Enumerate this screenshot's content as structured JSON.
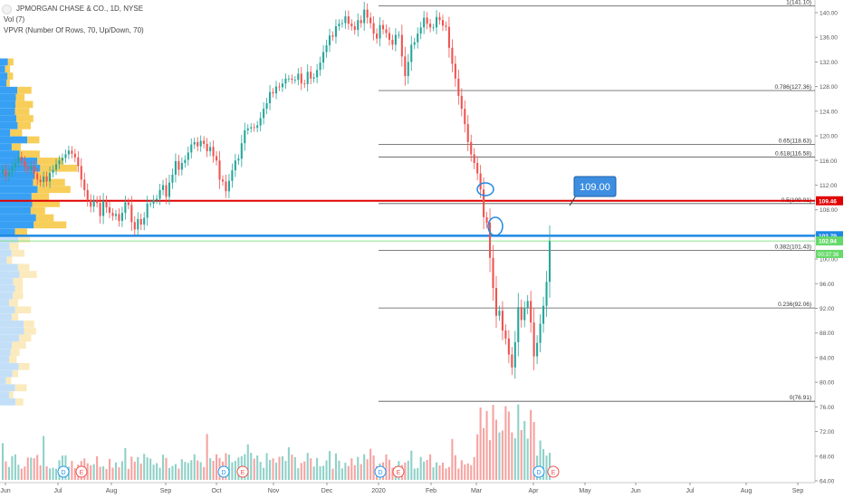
{
  "legend": {
    "symbol": "JPMORGAN CHASE & CO., 1D, NYSE",
    "vol": "Vol (7)",
    "vpvr": "VPVR (Number Of Rows, 70, Up/Down, 70)"
  },
  "colors": {
    "up": "#26a69a",
    "down": "#ef5350",
    "vol_up": "#8fd1c8",
    "vol_down": "#f6a3a1",
    "vp_up": "#2196f3",
    "vp_down": "#f7c948",
    "red_line": "#e00000",
    "blue_line": "#1e88e5",
    "green_line": "#66d96a",
    "fib_line": "#555555",
    "callout_bg": "#3d8ee0"
  },
  "chart_data": {
    "type": "candlestick",
    "price_axis": {
      "min": 62,
      "max": 142,
      "ticks": [
        64,
        68,
        72,
        76,
        80,
        84,
        88,
        92,
        96,
        100,
        104,
        108,
        112,
        116,
        120,
        124,
        128,
        132,
        136,
        140
      ],
      "tick_labels": [
        "64.00",
        "68.00",
        "72.00",
        "76.00",
        "80.00",
        "84.00",
        "88.00",
        "92.00",
        "96.00",
        "100.00",
        "104.00",
        "108.00",
        "112.00",
        "116.00",
        "120.00",
        "124.00",
        "128.00",
        "132.00",
        "136.00",
        "140.00"
      ]
    },
    "time_axis": {
      "labels": [
        "Jun",
        "Jul",
        "Aug",
        "Sep",
        "Oct",
        "Nov",
        "Dec",
        "2020",
        "Feb",
        "Mar",
        "Apr",
        "May",
        "Jun",
        "Jul",
        "Aug",
        "Sep"
      ]
    },
    "fibonacci": [
      {
        "label": "1(141.10)",
        "value": 141.1
      },
      {
        "label": "0.786(127.36)",
        "value": 127.36
      },
      {
        "label": "0.65(118.63)",
        "value": 118.63
      },
      {
        "label": "0.618(116.58)",
        "value": 116.58
      },
      {
        "label": "0.5(109.01)",
        "value": 109.01
      },
      {
        "label": "0.382(101.43)",
        "value": 101.43
      },
      {
        "label": "0.236(92.06)",
        "value": 92.06
      },
      {
        "label": "0(76.91)",
        "value": 76.91
      }
    ],
    "hlines": [
      {
        "label": "109.46",
        "value": 109.46,
        "color": "#e00000"
      },
      {
        "label": "103.79",
        "value": 103.79,
        "color": "#1e88e5"
      },
      {
        "label": "102.94",
        "value": 102.94,
        "color": "#66d96a"
      }
    ],
    "price_tags": [
      {
        "label": "102.94",
        "value": 102.94
      },
      {
        "label": "00:37:36",
        "value": 101.2
      }
    ],
    "callout": {
      "label": "109.00",
      "value": 109.0
    },
    "markers": [
      "D",
      "E",
      "D",
      "E",
      "D",
      "E",
      "D",
      "E"
    ],
    "closes": [
      114.5,
      113.5,
      114.1,
      114.9,
      115.6,
      116.6,
      115.9,
      115.0,
      114.6,
      115.1,
      113.9,
      112.9,
      112.5,
      113.4,
      112.6,
      114.0,
      114.5,
      115.4,
      116.0,
      116.4,
      117.0,
      117.6,
      117.1,
      116.5,
      115.1,
      112.9,
      111.2,
      109.6,
      108.5,
      109.5,
      109.1,
      107.0,
      109.4,
      108.4,
      107.5,
      107.0,
      107.3,
      106.2,
      107.5,
      109.2,
      108.8,
      106.0,
      104.8,
      106.5,
      105.6,
      106.7,
      109.0,
      109.0,
      109.6,
      109.8,
      111.2,
      112.0,
      110.1,
      112.4,
      113.7,
      115.9,
      114.5,
      115.6,
      116.1,
      117.3,
      118.6,
      119.0,
      118.3,
      119.2,
      118.7,
      117.5,
      118.2,
      116.7,
      116.0,
      112.9,
      112.6,
      111.0,
      112.7,
      114.4,
      116.0,
      116.3,
      118.8,
      120.9,
      121.2,
      121.4,
      121.3,
      121.7,
      122.9,
      124.4,
      125.3,
      127.1,
      126.9,
      128.0,
      127.9,
      128.5,
      129.3,
      129.3,
      129.1,
      129.1,
      130.1,
      128.5,
      128.4,
      130.4,
      129.3,
      129.5,
      130.7,
      131.9,
      133.6,
      134.7,
      136.3,
      136.1,
      137.8,
      138.2,
      138.3,
      139.4,
      138.2,
      137.8,
      137.2,
      138.8,
      138.3,
      140.5,
      139.2,
      138.3,
      136.6,
      135.8,
      138.0,
      137.3,
      136.7,
      135.6,
      134.8,
      136.4,
      136.4,
      132.9,
      129.7,
      132.0,
      134.8,
      135.2,
      136.6,
      137.6,
      139.2,
      138.2,
      137.6,
      137.6,
      139.3,
      138.8,
      137.9,
      137.7,
      134.3,
      131.7,
      129.3,
      126.5,
      124.4,
      121.9,
      119.0,
      117.0,
      115.6,
      113.9,
      111.3,
      106.8,
      105.9,
      100.2,
      95.3,
      90.8,
      91.6,
      88.4,
      87.1,
      84.5,
      82.4,
      86.5,
      92.2,
      90.1,
      92.0,
      93.2,
      89.7,
      84.2,
      86.4,
      89.5,
      92.4,
      96.3,
      102.9
    ]
  }
}
